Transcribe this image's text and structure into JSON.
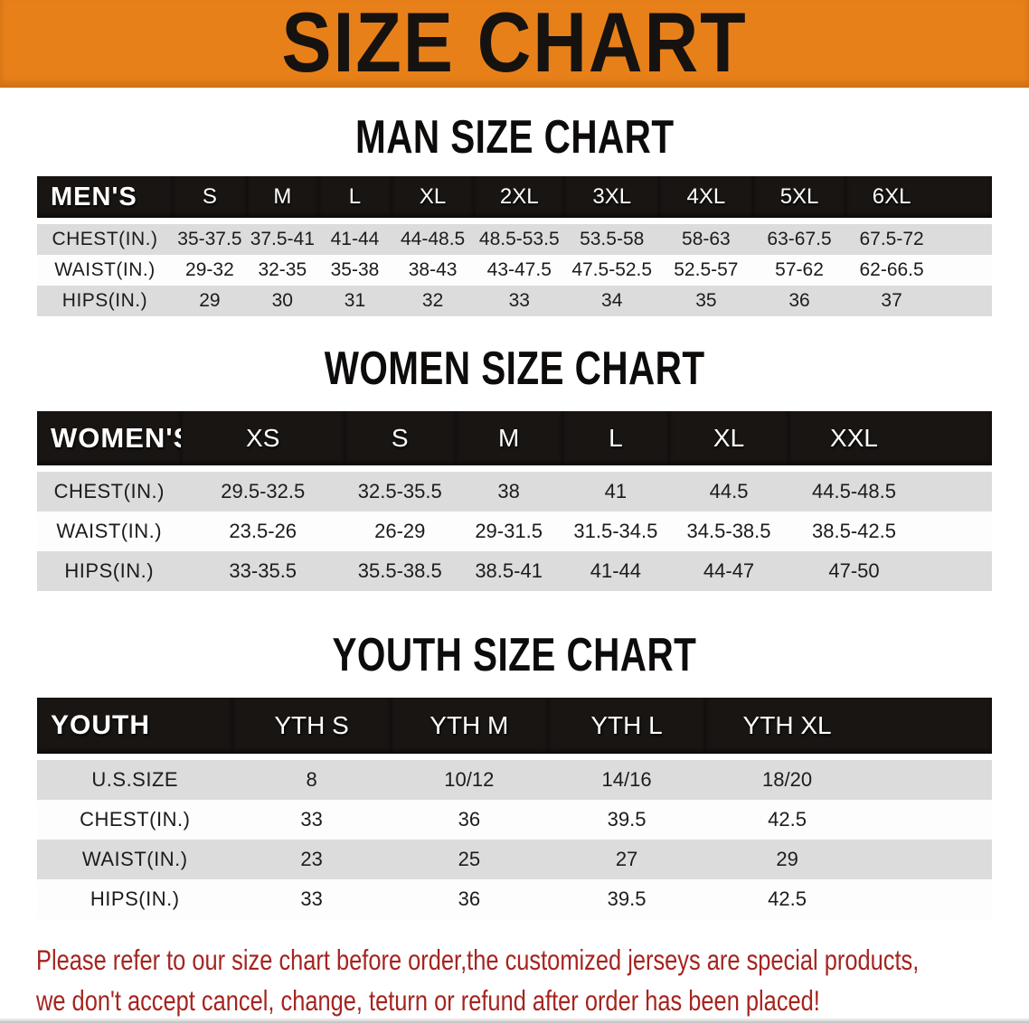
{
  "banner": {
    "title": "SIZE CHART"
  },
  "sections": [
    {
      "title": "MAN SIZE CHART",
      "header_label": "MEN'S",
      "columns": [
        "S",
        "M",
        "L",
        "XL",
        "2XL",
        "3XL",
        "4XL",
        "5XL",
        "6XL"
      ],
      "rows": [
        {
          "label": "CHEST(IN.)",
          "values": [
            "35-37.5",
            "37.5-41",
            "41-44",
            "44-48.5",
            "48.5-53.5",
            "53.5-58",
            "58-63",
            "63-67.5",
            "67.5-72"
          ]
        },
        {
          "label": "WAIST(IN.)",
          "values": [
            "29-32",
            "32-35",
            "35-38",
            "38-43",
            "43-47.5",
            "47.5-52.5",
            "52.5-57",
            "57-62",
            "62-66.5"
          ]
        },
        {
          "label": "HIPS(IN.)",
          "values": [
            "29",
            "30",
            "31",
            "32",
            "33",
            "34",
            "35",
            "36",
            "37"
          ]
        }
      ]
    },
    {
      "title": "WOMEN SIZE CHART",
      "header_label": "WOMEN'S",
      "columns": [
        "XS",
        "S",
        "M",
        "L",
        "XL",
        "XXL"
      ],
      "rows": [
        {
          "label": "CHEST(IN.)",
          "values": [
            "29.5-32.5",
            "32.5-35.5",
            "38",
            "41",
            "44.5",
            "44.5-48.5"
          ]
        },
        {
          "label": "WAIST(IN.)",
          "values": [
            "23.5-26",
            "26-29",
            "29-31.5",
            "31.5-34.5",
            "34.5-38.5",
            "38.5-42.5"
          ]
        },
        {
          "label": "HIPS(IN.)",
          "values": [
            "33-35.5",
            "35.5-38.5",
            "38.5-41",
            "41-44",
            "44-47",
            "47-50"
          ]
        }
      ]
    },
    {
      "title": "YOUTH SIZE CHART",
      "header_label": "YOUTH",
      "columns": [
        "YTH S",
        "YTH M",
        "YTH L",
        "YTH XL"
      ],
      "rows": [
        {
          "label": "U.S.SIZE",
          "values": [
            "8",
            "10/12",
            "14/16",
            "18/20"
          ]
        },
        {
          "label": "CHEST(IN.)",
          "values": [
            "33",
            "36",
            "39.5",
            "42.5"
          ]
        },
        {
          "label": "WAIST(IN.)",
          "values": [
            "23",
            "25",
            "27",
            "29"
          ]
        },
        {
          "label": "HIPS(IN.)",
          "values": [
            "33",
            "36",
            "39.5",
            "42.5"
          ]
        }
      ]
    }
  ],
  "footer": {
    "line1": "Please refer to our size chart before order,the customized jerseys are special products,",
    "line2": "we don't accept cancel, change, teturn or refund after order has been placed!"
  },
  "colors": {
    "banner_orange": "#e8801a",
    "header_black": "#191513",
    "row_gray": "#dcdcdc",
    "row_white": "#fdfdfd",
    "footer_red": "#a5241f"
  }
}
